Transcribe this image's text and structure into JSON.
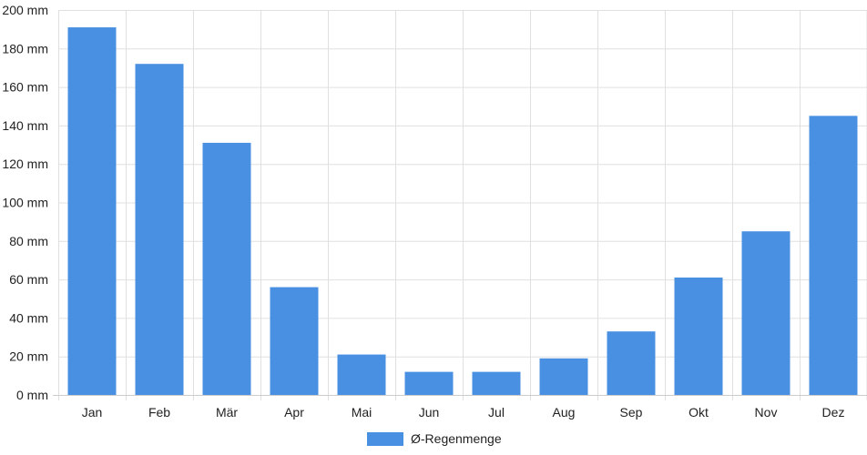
{
  "chart_data": {
    "type": "bar",
    "categories": [
      "Jan",
      "Feb",
      "Mär",
      "Apr",
      "Mai",
      "Jun",
      "Jul",
      "Aug",
      "Sep",
      "Okt",
      "Nov",
      "Dez"
    ],
    "series": [
      {
        "name": "Ø-Regenmenge",
        "values": [
          191,
          172,
          131,
          56,
          21,
          12,
          12,
          19,
          33,
          61,
          85,
          145
        ],
        "color": "#4a90e2"
      }
    ],
    "ylim": [
      0,
      200
    ],
    "ytick_step": 20,
    "yticks": [
      "0 mm",
      "20 mm",
      "40 mm",
      "60 mm",
      "80 mm",
      "100 mm",
      "120 mm",
      "140 mm",
      "160 mm",
      "180 mm",
      "200 mm"
    ],
    "grid": true,
    "legend": "bottom-center",
    "colors": {
      "bar": "#4a90e2",
      "grid": "#e0e0e0",
      "axis": "#cccccc",
      "text": "#222222"
    }
  }
}
